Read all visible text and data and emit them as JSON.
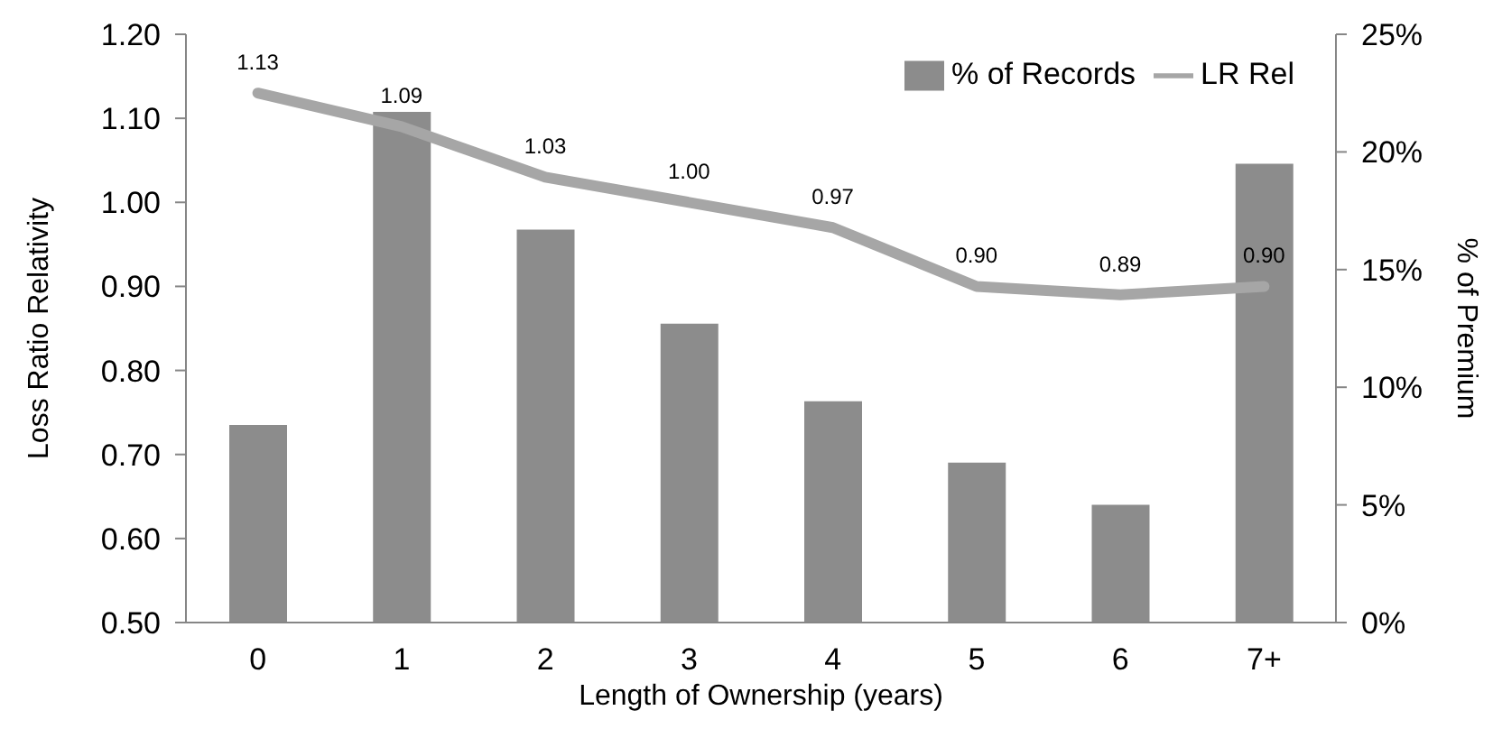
{
  "chart_data": {
    "type": "bar",
    "categories": [
      "0",
      "1",
      "2",
      "3",
      "4",
      "5",
      "6",
      "7+"
    ],
    "xlabel": "Length of Ownership (years)",
    "ylabel": "Loss Ratio Relativity",
    "y2label": "% of Premium",
    "series": [
      {
        "name": "% of Records",
        "axis": "y2",
        "color": "#8c8c8c",
        "values": [
          8.4,
          21.7,
          16.7,
          12.7,
          9.4,
          6.8,
          5.0,
          19.5
        ]
      },
      {
        "name": "LR Rel",
        "type": "line",
        "color": "#a6a6a6",
        "values": [
          1.13,
          1.09,
          1.03,
          1.0,
          0.97,
          0.9,
          0.89,
          0.9
        ],
        "value_labels": [
          "1.13",
          "1.09",
          "1.03",
          "1.00",
          "0.97",
          "0.90",
          "0.89",
          "0.90"
        ]
      }
    ],
    "ylim": [
      0.5,
      1.2
    ],
    "yticks": [
      {
        "value": 0.5,
        "label": "0.50"
      },
      {
        "value": 0.6,
        "label": "0.60"
      },
      {
        "value": 0.7,
        "label": "0.70"
      },
      {
        "value": 0.8,
        "label": "0.80"
      },
      {
        "value": 0.9,
        "label": "0.90"
      },
      {
        "value": 1.0,
        "label": "1.00"
      },
      {
        "value": 1.1,
        "label": "1.10"
      },
      {
        "value": 1.2,
        "label": "1.20"
      }
    ],
    "y2lim": [
      0,
      25
    ],
    "y2ticks": [
      {
        "value": 0,
        "label": "0%"
      },
      {
        "value": 5,
        "label": "5%"
      },
      {
        "value": 10,
        "label": "10%"
      },
      {
        "value": 15,
        "label": "15%"
      },
      {
        "value": 20,
        "label": "20%"
      },
      {
        "value": 25,
        "label": "25%"
      }
    ],
    "legend": "top right",
    "grid": false,
    "marker": "none",
    "line_style": "solid"
  }
}
